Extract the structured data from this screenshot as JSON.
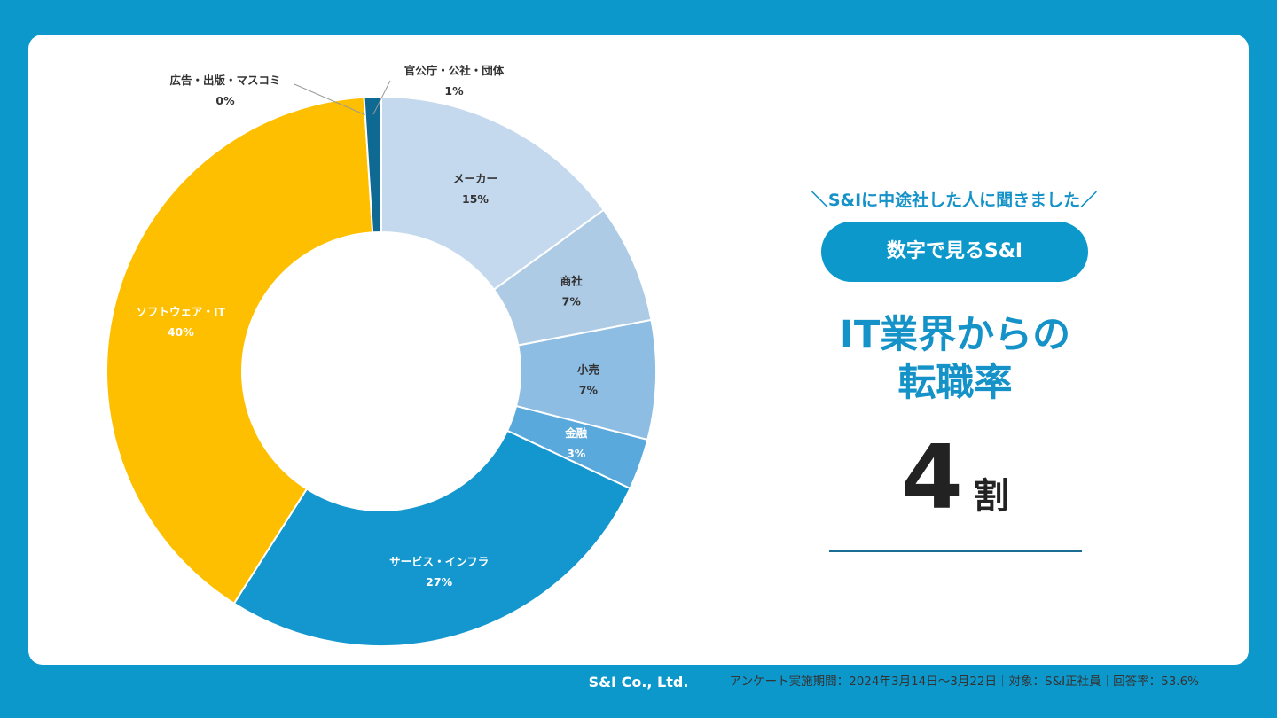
{
  "colors": {
    "background": "#0d98cc",
    "accent": "#1592c7",
    "slices": [
      "#c4d9ee",
      "#aecbe6",
      "#8dbde2",
      "#5aa9dc",
      "#1497cf",
      "#fdbf00",
      "#0e6a92",
      "#0e6a92"
    ]
  },
  "chart_data": {
    "type": "pie",
    "variant": "donut",
    "title": "",
    "categories": [
      "メーカー",
      "商社",
      "小売",
      "金融",
      "サービス・インフラ",
      "ソフトウェア・IT",
      "広告・出版・マスコミ",
      "官公庁・公社・団体"
    ],
    "values": [
      15,
      7,
      7,
      3,
      27,
      40,
      0,
      1
    ],
    "value_labels": [
      "15%",
      "7%",
      "7%",
      "3%",
      "27%",
      "40%",
      "0%",
      "1%"
    ]
  },
  "headline": {
    "tagline": "＼S&Iに中途社した人に聞きました／",
    "badge": "数字で見るS&I",
    "title_line1": "IT業界からの",
    "title_line2": "転職率",
    "stat_number": "4",
    "stat_unit": "割"
  },
  "footnote": "アンケート実施期間：2024年3月14日〜3月22日｜対象：S&I正社員｜回答率：53.6%",
  "footer": {
    "company": "S&I Co., Ltd."
  }
}
